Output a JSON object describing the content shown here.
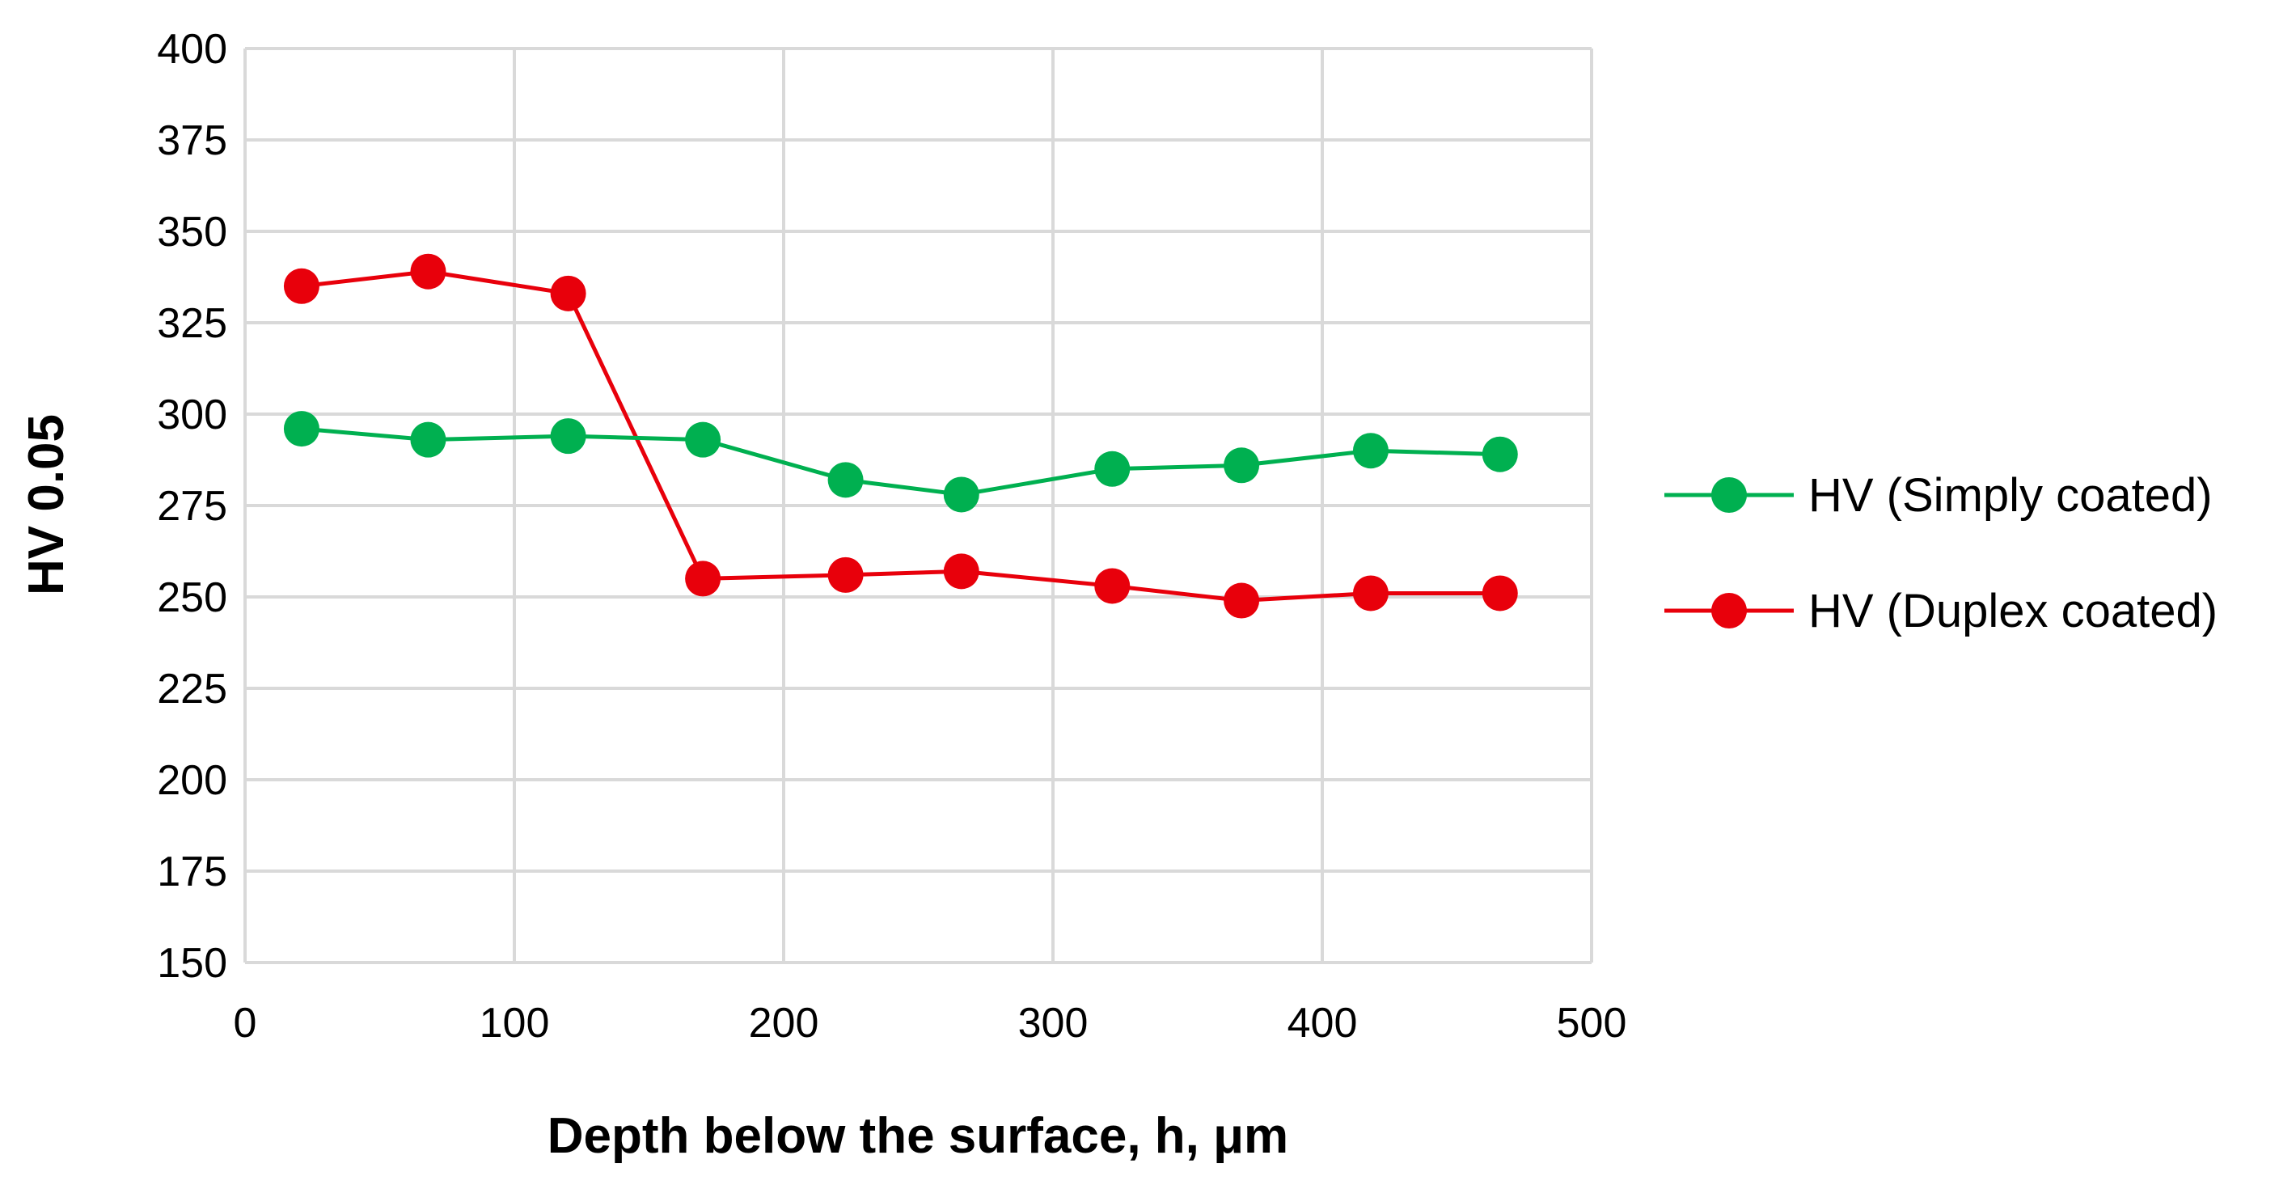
{
  "chart_data": {
    "type": "line",
    "title": "",
    "xlabel": "Depth below the surface, h,   μm",
    "ylabel": "HV 0.05",
    "xlim": [
      0,
      500
    ],
    "ylim": [
      150,
      400
    ],
    "x_ticks": [
      0,
      100,
      200,
      300,
      400,
      500
    ],
    "y_ticks": [
      150,
      175,
      200,
      225,
      250,
      275,
      300,
      325,
      350,
      375,
      400
    ],
    "grid": true,
    "legend_position": "right",
    "series": [
      {
        "name": "HV (Simply coated)",
        "color": "#00b050",
        "x": [
          21,
          68,
          120,
          170,
          223,
          266,
          322,
          370,
          418,
          466
        ],
        "y": [
          296,
          293,
          294,
          293,
          282,
          278,
          285,
          286,
          290,
          289
        ]
      },
      {
        "name": "HV (Duplex coated)",
        "color": "#e8000b",
        "x": [
          21,
          68,
          120,
          170,
          223,
          266,
          322,
          370,
          418,
          466
        ],
        "y": [
          335,
          339,
          333,
          255,
          256,
          257,
          253,
          249,
          251,
          251
        ]
      }
    ]
  }
}
